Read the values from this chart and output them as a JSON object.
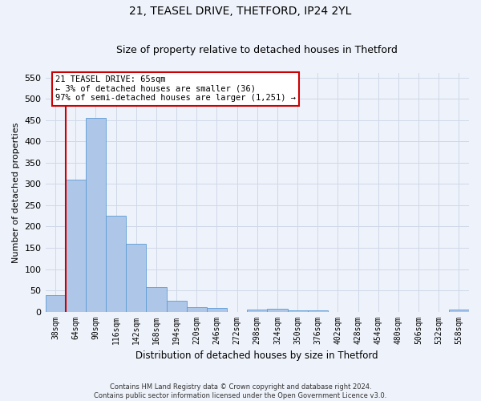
{
  "title_line1": "21, TEASEL DRIVE, THETFORD, IP24 2YL",
  "title_line2": "Size of property relative to detached houses in Thetford",
  "xlabel": "Distribution of detached houses by size in Thetford",
  "ylabel": "Number of detached properties",
  "footer_line1": "Contains HM Land Registry data © Crown copyright and database right 2024.",
  "footer_line2": "Contains public sector information licensed under the Open Government Licence v3.0.",
  "annotation_line1": "21 TEASEL DRIVE: 65sqm",
  "annotation_line2": "← 3% of detached houses are smaller (36)",
  "annotation_line3": "97% of semi-detached houses are larger (1,251) →",
  "bar_labels": [
    "38sqm",
    "64sqm",
    "90sqm",
    "116sqm",
    "142sqm",
    "168sqm",
    "194sqm",
    "220sqm",
    "246sqm",
    "272sqm",
    "298sqm",
    "324sqm",
    "350sqm",
    "376sqm",
    "402sqm",
    "428sqm",
    "454sqm",
    "480sqm",
    "506sqm",
    "532sqm",
    "558sqm"
  ],
  "bar_values": [
    38,
    311,
    456,
    226,
    160,
    58,
    25,
    11,
    8,
    0,
    4,
    6,
    3,
    3,
    0,
    0,
    0,
    0,
    0,
    0,
    4
  ],
  "bar_color": "#aec6e8",
  "bar_edge_color": "#5b9bd5",
  "marker_color": "#cc0000",
  "ylim": [
    0,
    560
  ],
  "yticks": [
    0,
    50,
    100,
    150,
    200,
    250,
    300,
    350,
    400,
    450,
    500,
    550
  ],
  "grid_color": "#d0d8e8",
  "background_color": "#eef2fa",
  "annotation_box_color": "#ffffff",
  "annotation_box_edge": "#cc0000",
  "title_fontsize": 10,
  "subtitle_fontsize": 9,
  "ylabel_fontsize": 8,
  "xlabel_fontsize": 8.5,
  "tick_fontsize": 7,
  "annotation_fontsize": 7.5,
  "footer_fontsize": 6
}
